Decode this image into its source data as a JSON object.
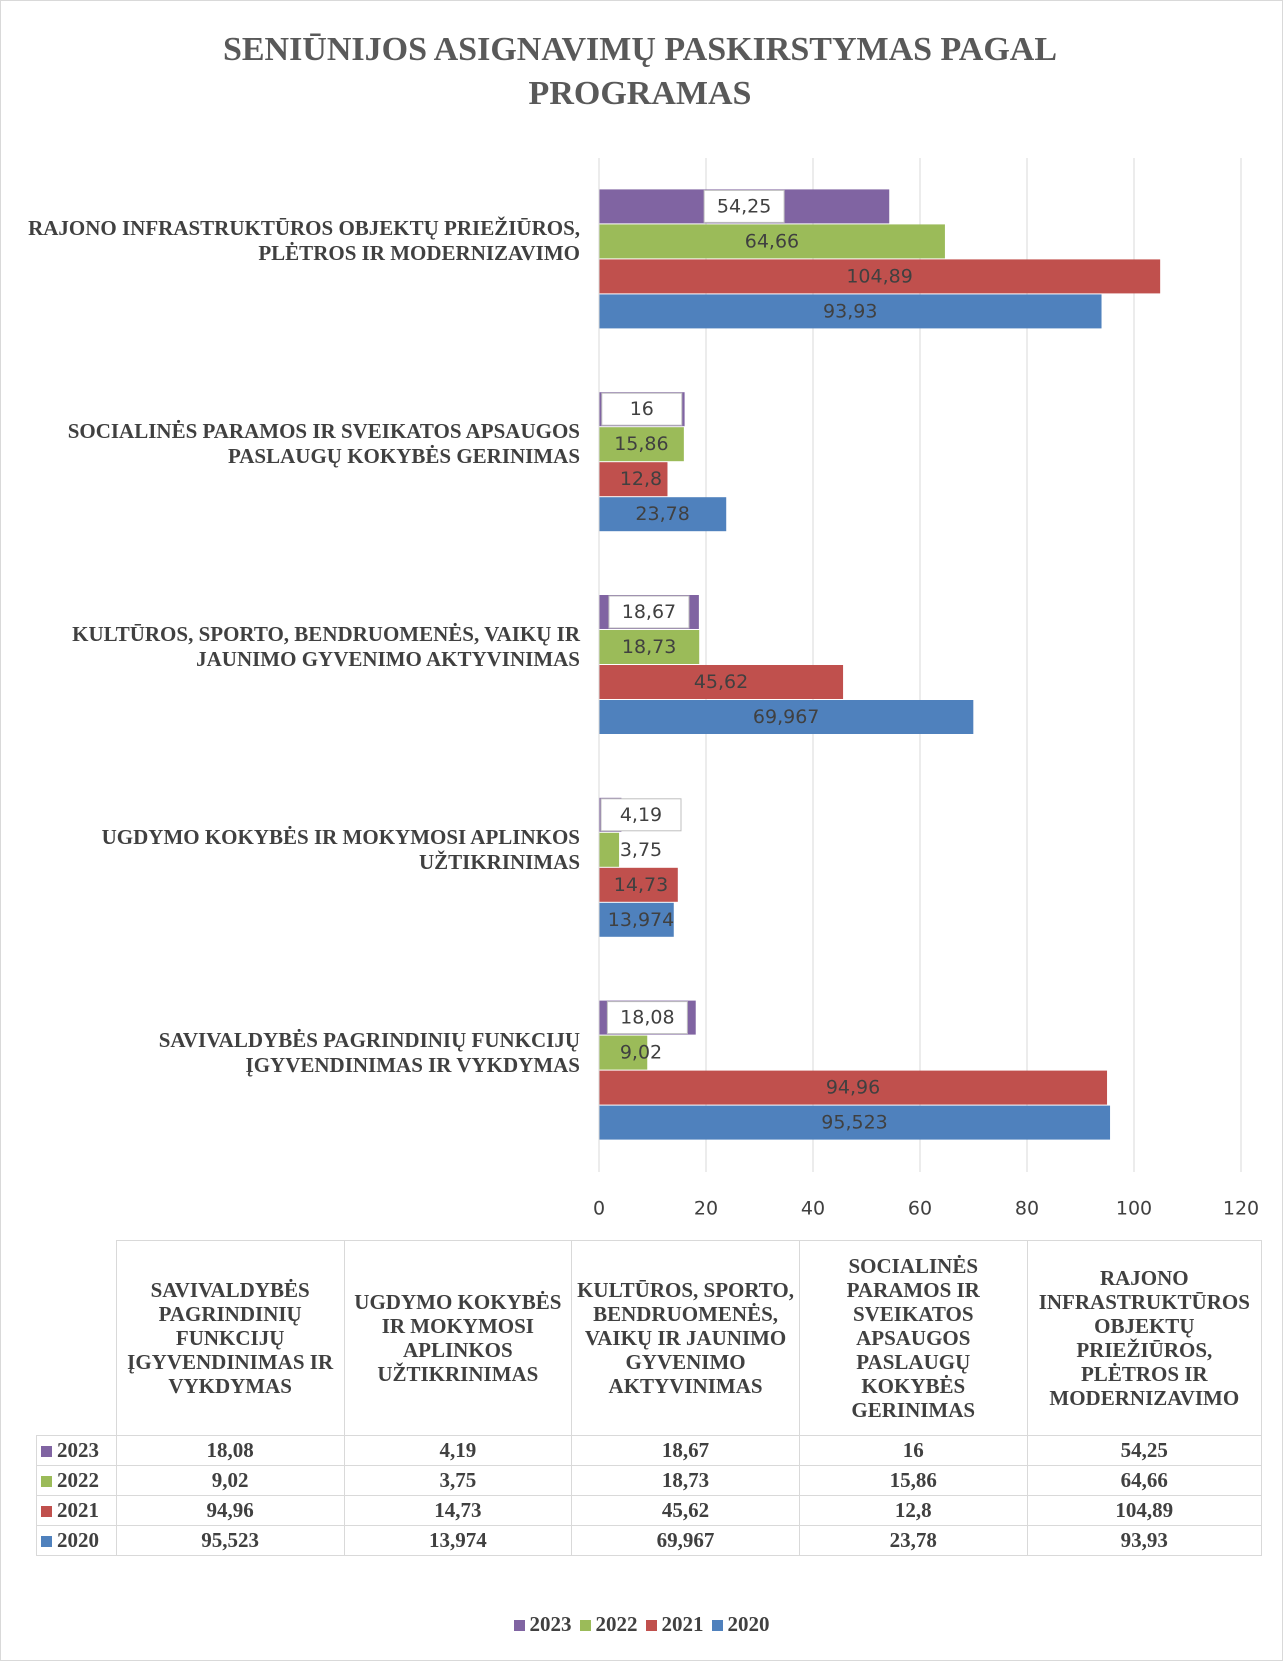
{
  "chart_data": {
    "type": "bar",
    "orientation": "horizontal",
    "title": "SENIŪNIJOS ASIGNAVIMŲ PASKIRSTYMAS PAGAL PROGRAMAS",
    "categories": [
      "SAVIVALDYBĖS PAGRINDINIŲ FUNKCIJŲ ĮGYVENDINIMAS IR VYKDYMAS",
      "UGDYMO KOKYBĖS IR MOKYMOSI APLINKOS UŽTIKRINIMAS",
      "KULTŪROS, SPORTO, BENDRUOMENĖS, VAIKŲ IR JAUNIMO GYVENIMO AKTYVINIMAS",
      "SOCIALINĖS PARAMOS IR SVEIKATOS APSAUGOS PASLAUGŲ KOKYBĖS GERINIMAS",
      "RAJONO INFRASTRUKTŪROS OBJEKTŲ PRIEŽIŪROS, PLĖTROS IR MODERNIZAVIMO"
    ],
    "series": [
      {
        "name": "2023",
        "color": "#8064a2",
        "values": [
          18.08,
          4.19,
          18.67,
          16,
          54.25
        ],
        "value_labels": [
          "18,08",
          "4,19",
          "18,67",
          "16",
          "54,25"
        ]
      },
      {
        "name": "2022",
        "color": "#9bbb59",
        "values": [
          9.02,
          3.75,
          18.73,
          15.86,
          64.66
        ],
        "value_labels": [
          "9,02",
          "3,75",
          "18,73",
          "15,86",
          "64,66"
        ]
      },
      {
        "name": "2021",
        "color": "#c0504d",
        "values": [
          94.96,
          14.73,
          45.62,
          12.8,
          104.89
        ],
        "value_labels": [
          "94,96",
          "14,73",
          "45,62",
          "12,8",
          "104,89"
        ]
      },
      {
        "name": "2020",
        "color": "#4f81bd",
        "values": [
          95.523,
          13.974,
          69.967,
          23.78,
          93.93
        ],
        "value_labels": [
          "95,523",
          "13,974",
          "69,967",
          "23,78",
          "93,93"
        ]
      }
    ],
    "xlim": [
      0,
      120
    ],
    "xticks": [
      0,
      20,
      40,
      60,
      80,
      100,
      120
    ],
    "grid": true,
    "legend": "bottom",
    "data_table": true
  }
}
